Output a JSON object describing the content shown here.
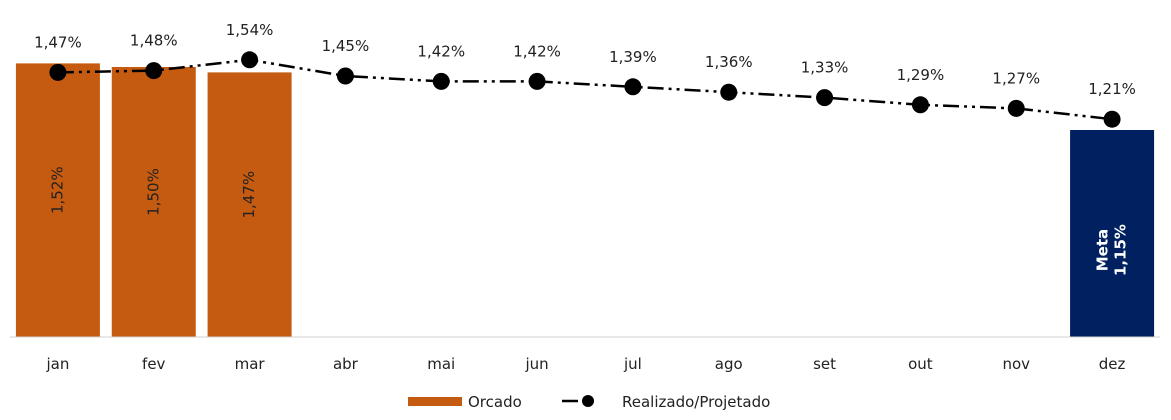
{
  "chart_data": {
    "type": "bar",
    "categories": [
      "jan",
      "fev",
      "mar",
      "abr",
      "mai",
      "jun",
      "jul",
      "ago",
      "set",
      "out",
      "nov",
      "dez"
    ],
    "ylim": [
      0,
      1.6
    ],
    "grid": false,
    "legend_position": "bottom",
    "series": [
      {
        "name": "Orcado",
        "kind": "bar",
        "color": "#C55A11",
        "values": [
          1.52,
          1.5,
          1.47,
          null,
          null,
          null,
          null,
          null,
          null,
          null,
          null,
          null
        ],
        "labels": [
          "1,52%",
          "1,50%",
          "1,47%",
          "",
          "",
          "",
          "",
          "",
          "",
          "",
          "",
          ""
        ]
      },
      {
        "name": "Realizado/Projetado",
        "kind": "line",
        "color": "#000000",
        "line_style": "dash-dot-dot",
        "marker": "circle",
        "values": [
          1.47,
          1.48,
          1.54,
          1.45,
          1.42,
          1.42,
          1.39,
          1.36,
          1.33,
          1.29,
          1.27,
          1.21
        ],
        "labels": [
          "1,47%",
          "1,48%",
          "1,54%",
          "1,45%",
          "1,42%",
          "1,42%",
          "1,39%",
          "1,36%",
          "1,33%",
          "1,29%",
          "1,27%",
          "1,21%"
        ]
      }
    ],
    "target": {
      "category": "dez",
      "value": 1.15,
      "color": "#002060",
      "label_title": "Meta",
      "label_value": "1,15%"
    }
  }
}
